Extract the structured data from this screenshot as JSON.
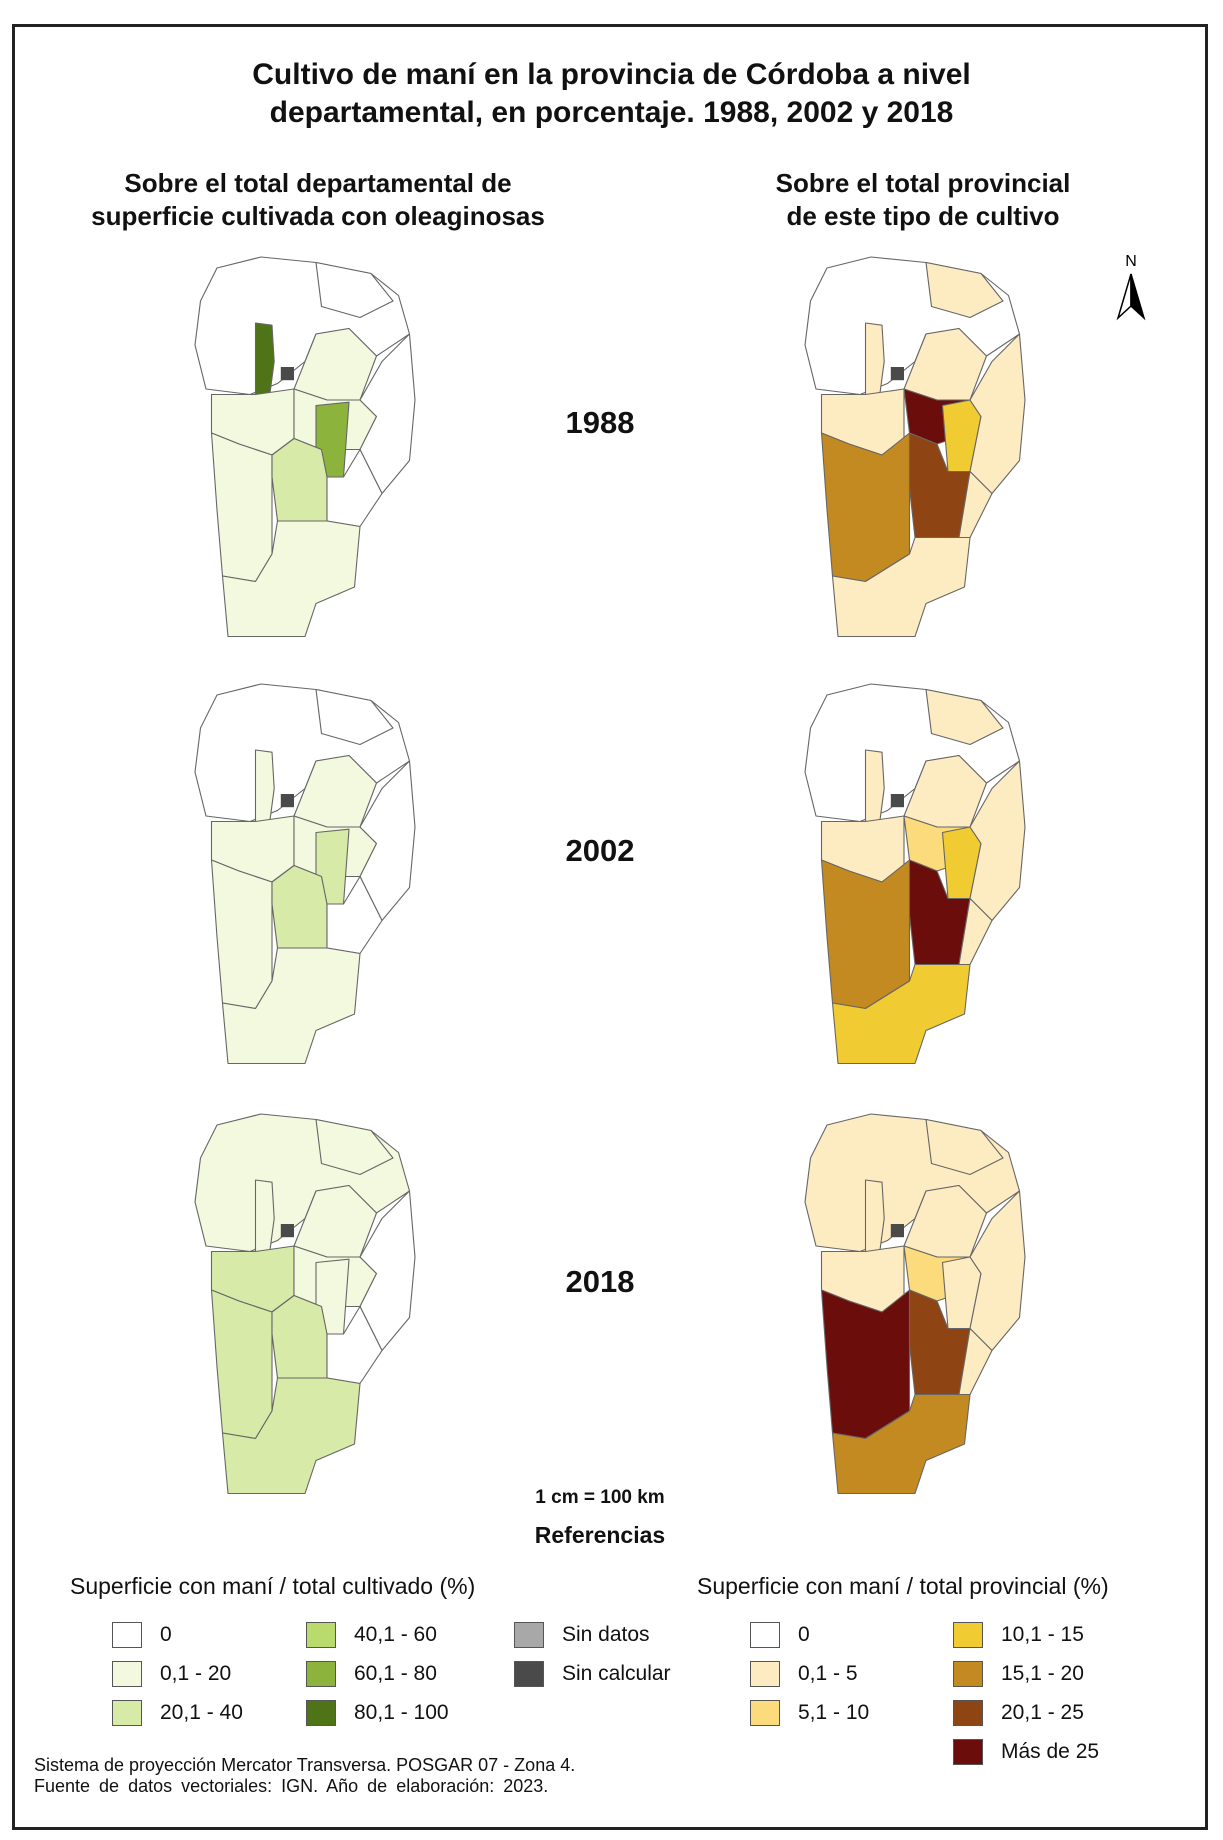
{
  "title_line1": "Cultivo de maní en la provincia de Córdoba a nivel",
  "title_line2": "departamental, en porcentaje. 1988, 2002 y 2018",
  "left_col_title_line1": "Sobre el total departamental de",
  "left_col_title_line2": "superficie cultivada con oleaginosas",
  "right_col_title_line1": "Sobre el total provincial",
  "right_col_title_line2": "de este tipo de cultivo",
  "north_label": "N",
  "years": [
    "1988",
    "2002",
    "2018"
  ],
  "scale": "1 cm = 100 km",
  "references": "Referencias",
  "legend_left": {
    "title": "Superficie con maní / total cultivado (%)",
    "items": [
      {
        "label": "0",
        "color": "#ffffff"
      },
      {
        "label": "0,1 - 20",
        "color": "#f3f9df"
      },
      {
        "label": "20,1 - 40",
        "color": "#d8eaa8"
      },
      {
        "label": "40,1 - 60",
        "color": "#b9da6c"
      },
      {
        "label": "60,1 - 80",
        "color": "#8cb33c"
      },
      {
        "label": "80,1 - 100",
        "color": "#4f7418"
      },
      {
        "label": "Sin datos",
        "color": "#a8a8a8"
      },
      {
        "label": "Sin calcular",
        "color": "#4a4a4a"
      }
    ]
  },
  "legend_right": {
    "title": "Superficie con maní / total provincial (%)",
    "items": [
      {
        "label": "0",
        "color": "#ffffff"
      },
      {
        "label": "0,1 - 5",
        "color": "#fdecc2"
      },
      {
        "label": "5,1 - 10",
        "color": "#fbdb7c"
      },
      {
        "label": "10,1 - 15",
        "color": "#f0cb32"
      },
      {
        "label": "15,1 - 20",
        "color": "#c48a22"
      },
      {
        "label": "20,1 - 25",
        "color": "#8f4513"
      },
      {
        "label": "Más de 25",
        "color": "#6a0d0b"
      }
    ]
  },
  "source_line1": "Sistema de proyección Mercator Transversa. POSGAR 07 - Zona 4.",
  "source_line2": "Fuente de datos vectoriales: IGN. Año de elaboración: 2023.",
  "maps": {
    "left_1988": {
      "north": "white",
      "center_west": "darkgreen",
      "center_east": "light",
      "center_east_inner": "green60",
      "center_south": "med",
      "south": "light",
      "west": "light"
    },
    "left_2002": {
      "north": "white",
      "center_west": "light",
      "center_east": "light",
      "center_east_inner": "med",
      "center_south": "med",
      "south": "light",
      "west": "light"
    },
    "left_2018": {
      "north": "light",
      "center_west": "light",
      "center_east": "light",
      "center_east_inner": "light",
      "center_south": "med",
      "south": "med",
      "west": "med"
    },
    "right_1988": {
      "north": "white",
      "center": "maroon",
      "east_center": "yellow",
      "west": "tan",
      "south_center": "brown",
      "east": "cream",
      "south": "cream"
    },
    "right_2002": {
      "north": "white",
      "center": "ltyellow",
      "east_center": "yellow",
      "west": "tan",
      "south_center": "maroon",
      "east": "cream",
      "south": "yellow"
    },
    "right_2018": {
      "north": "cream",
      "center": "ltyellow",
      "east_center": "cream",
      "west": "maroon",
      "south_center": "brown",
      "east": "cream",
      "south": "tan"
    }
  }
}
